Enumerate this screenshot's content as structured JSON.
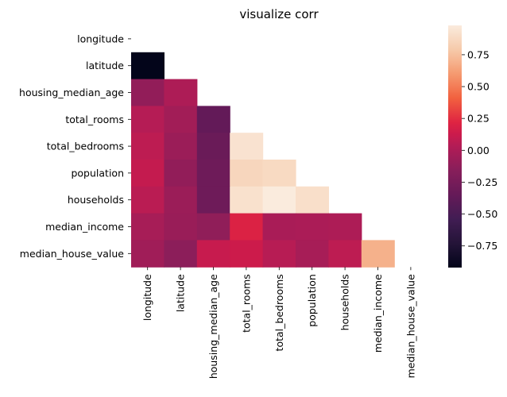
{
  "chart_data": {
    "type": "heatmap",
    "title": "visualize corr",
    "xlabel": "",
    "ylabel": "",
    "mask": "upper-triangle-and-diagonal",
    "colormap": "rocket",
    "vmin": -0.92,
    "vmax": 0.98,
    "rows": [
      "longitude",
      "latitude",
      "housing_median_age",
      "total_rooms",
      "total_bedrooms",
      "population",
      "households",
      "median_income",
      "median_house_value"
    ],
    "columns": [
      "longitude",
      "latitude",
      "housing_median_age",
      "total_rooms",
      "total_bedrooms",
      "population",
      "households",
      "median_income",
      "median_house_value"
    ],
    "values": [
      [
        null,
        null,
        null,
        null,
        null,
        null,
        null,
        null,
        null
      ],
      [
        -0.92,
        null,
        null,
        null,
        null,
        null,
        null,
        null,
        null
      ],
      [
        -0.11,
        0.01,
        null,
        null,
        null,
        null,
        null,
        null,
        null
      ],
      [
        0.04,
        -0.04,
        -0.36,
        null,
        null,
        null,
        null,
        null,
        null
      ],
      [
        0.07,
        -0.07,
        -0.32,
        0.93,
        null,
        null,
        null,
        null,
        null
      ],
      [
        0.1,
        -0.11,
        -0.3,
        0.86,
        0.88,
        null,
        null,
        null,
        null
      ],
      [
        0.06,
        -0.07,
        -0.3,
        0.92,
        0.98,
        0.91,
        null,
        null,
        null
      ],
      [
        -0.02,
        -0.08,
        -0.12,
        0.2,
        -0.01,
        0.0,
        0.01,
        null,
        null
      ],
      [
        -0.05,
        -0.14,
        0.11,
        0.13,
        0.05,
        -0.02,
        0.07,
        0.69,
        null
      ]
    ],
    "colorbar": {
      "ticks": [
        0.75,
        0.5,
        0.25,
        0.0,
        -0.25,
        -0.5,
        -0.75
      ],
      "tick_labels": [
        "0.75",
        "0.50",
        "0.25",
        "0.00",
        "−0.25",
        "−0.50",
        "−0.75"
      ]
    }
  }
}
